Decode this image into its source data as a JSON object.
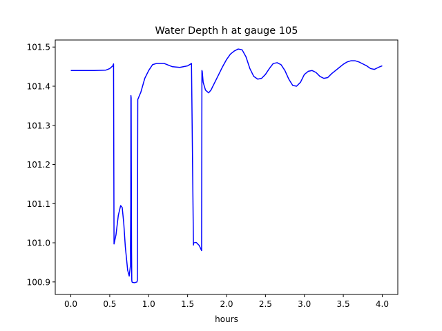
{
  "chart_data": {
    "type": "line",
    "title": "Water Depth h at gauge 105",
    "xlabel": "hours",
    "ylabel": "",
    "xlim": [
      -0.2,
      4.2
    ],
    "ylim": [
      100.868,
      101.518
    ],
    "xticks": [
      0.0,
      0.5,
      1.0,
      1.5,
      2.0,
      2.5,
      3.0,
      3.5,
      4.0
    ],
    "xtick_labels": [
      "0.0",
      "0.5",
      "1.0",
      "1.5",
      "2.0",
      "2.5",
      "3.0",
      "3.5",
      "4.0"
    ],
    "yticks": [
      100.9,
      101.0,
      101.1,
      101.2,
      101.3,
      101.4,
      101.5
    ],
    "ytick_labels": [
      "100.9",
      "101.0",
      "101.1",
      "101.2",
      "101.3",
      "101.4",
      "101.5"
    ],
    "grid": false,
    "series": [
      {
        "color": "#0000ff",
        "x": [
          0.0,
          0.3,
          0.45,
          0.5,
          0.54,
          0.545,
          0.549,
          0.555,
          0.58,
          0.61,
          0.64,
          0.66,
          0.68,
          0.7,
          0.73,
          0.75,
          0.765,
          0.77,
          0.772,
          0.775,
          0.777,
          0.78,
          0.783,
          0.786,
          0.79,
          0.82,
          0.85,
          0.855,
          0.86,
          0.9,
          0.95,
          1.0,
          1.05,
          1.1,
          1.2,
          1.3,
          1.4,
          1.5,
          1.55,
          1.575,
          1.578,
          1.582,
          1.61,
          1.65,
          1.68,
          1.684,
          1.688,
          1.7,
          1.73,
          1.77,
          1.8,
          1.85,
          1.9,
          1.95,
          2.0,
          2.05,
          2.1,
          2.15,
          2.2,
          2.25,
          2.3,
          2.35,
          2.4,
          2.45,
          2.5,
          2.55,
          2.6,
          2.65,
          2.7,
          2.75,
          2.8,
          2.85,
          2.9,
          2.95,
          3.0,
          3.05,
          3.1,
          3.15,
          3.2,
          3.25,
          3.3,
          3.35,
          3.4,
          3.45,
          3.5,
          3.55,
          3.6,
          3.65,
          3.7,
          3.75,
          3.8,
          3.85,
          3.9,
          3.95,
          4.0
        ],
        "y": [
          101.44,
          101.44,
          101.441,
          101.445,
          101.452,
          101.455,
          101.457,
          100.997,
          101.02,
          101.07,
          101.095,
          101.09,
          101.05,
          100.99,
          100.93,
          100.915,
          100.94,
          101.1,
          101.376,
          101.37,
          101.2,
          100.98,
          100.905,
          100.9,
          100.899,
          100.898,
          100.9,
          100.905,
          101.366,
          101.385,
          101.42,
          101.44,
          101.455,
          101.458,
          101.458,
          101.45,
          101.448,
          101.452,
          101.458,
          100.994,
          101.0,
          101.0,
          101.001,
          100.993,
          100.98,
          101.44,
          101.438,
          101.41,
          101.39,
          101.383,
          101.39,
          101.41,
          101.43,
          101.45,
          101.468,
          101.482,
          101.49,
          101.495,
          101.493,
          101.475,
          101.445,
          101.425,
          101.418,
          101.42,
          101.43,
          101.445,
          101.458,
          101.46,
          101.455,
          101.44,
          101.418,
          101.402,
          101.4,
          101.41,
          101.43,
          101.438,
          101.44,
          101.435,
          101.425,
          101.42,
          101.422,
          101.432,
          101.44,
          101.448,
          101.456,
          101.462,
          101.465,
          101.465,
          101.462,
          101.457,
          101.452,
          101.445,
          101.443,
          101.448,
          101.452
        ]
      }
    ]
  }
}
